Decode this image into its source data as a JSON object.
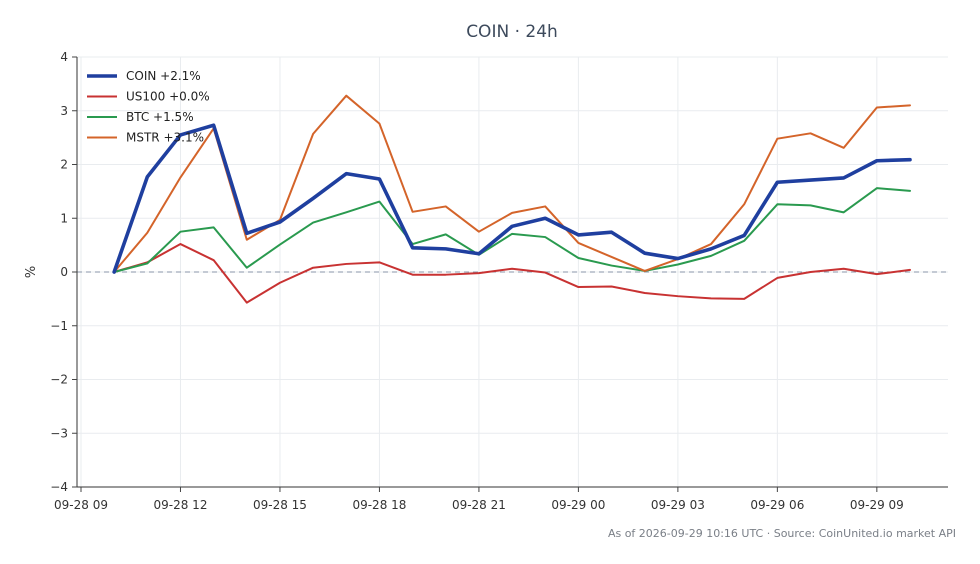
{
  "chart_data": {
    "type": "line",
    "title": "COIN · 24h",
    "ylabel": "%",
    "xlabel": "",
    "ylim": [
      -4,
      4
    ],
    "yticks": [
      -4,
      -3,
      -2,
      -1,
      0,
      1,
      2,
      3,
      4
    ],
    "ytick_labels": [
      "−4",
      "−3",
      "−2",
      "−1",
      "0",
      "1",
      "2",
      "3",
      "4"
    ],
    "x_start": "09-28 10",
    "x_end": "09-29 10",
    "xticks": [
      "09-28 09",
      "09-28 12",
      "09-28 15",
      "09-28 18",
      "09-28 21",
      "09-29 00",
      "09-29 03",
      "09-29 06",
      "09-29 09"
    ],
    "grid": true,
    "zero_line": true,
    "legend_position": "top-left",
    "series": [
      {
        "name": "COIN +2.1%",
        "color": "#1f3f9f",
        "emphasis": true,
        "values": [
          0.0,
          1.77,
          2.55,
          2.73,
          0.72,
          0.93,
          1.37,
          1.83,
          1.73,
          0.45,
          0.43,
          0.34,
          0.85,
          1.0,
          0.69,
          0.74,
          0.35,
          0.25,
          0.43,
          0.68,
          1.67,
          1.71,
          1.75,
          2.07,
          2.09
        ]
      },
      {
        "name": "US100 +0.0%",
        "color": "#c83232",
        "values": [
          0.0,
          0.18,
          0.52,
          0.22,
          -0.57,
          -0.2,
          0.08,
          0.15,
          0.18,
          -0.05,
          -0.05,
          -0.02,
          0.06,
          -0.01,
          -0.28,
          -0.27,
          -0.39,
          -0.45,
          -0.49,
          -0.5,
          -0.11,
          0.0,
          0.06,
          -0.04,
          0.04
        ]
      },
      {
        "name": "BTC +1.5%",
        "color": "#2a9a4f",
        "values": [
          0.0,
          0.16,
          0.75,
          0.83,
          0.08,
          0.51,
          0.92,
          1.11,
          1.31,
          0.52,
          0.7,
          0.32,
          0.71,
          0.65,
          0.26,
          0.12,
          0.02,
          0.14,
          0.3,
          0.58,
          1.26,
          1.24,
          1.11,
          1.56,
          1.51
        ]
      },
      {
        "name": "MSTR +3.1%",
        "color": "#d4642a",
        "values": [
          0.0,
          0.73,
          1.76,
          2.67,
          0.6,
          0.97,
          2.57,
          3.28,
          2.76,
          1.12,
          1.22,
          0.75,
          1.1,
          1.22,
          0.54,
          0.28,
          0.02,
          0.24,
          0.52,
          1.26,
          2.48,
          2.58,
          2.31,
          3.06,
          3.1
        ]
      }
    ]
  },
  "footer": "As of 2026-09-29 10:16 UTC · Source: CoinUnited.io market API"
}
